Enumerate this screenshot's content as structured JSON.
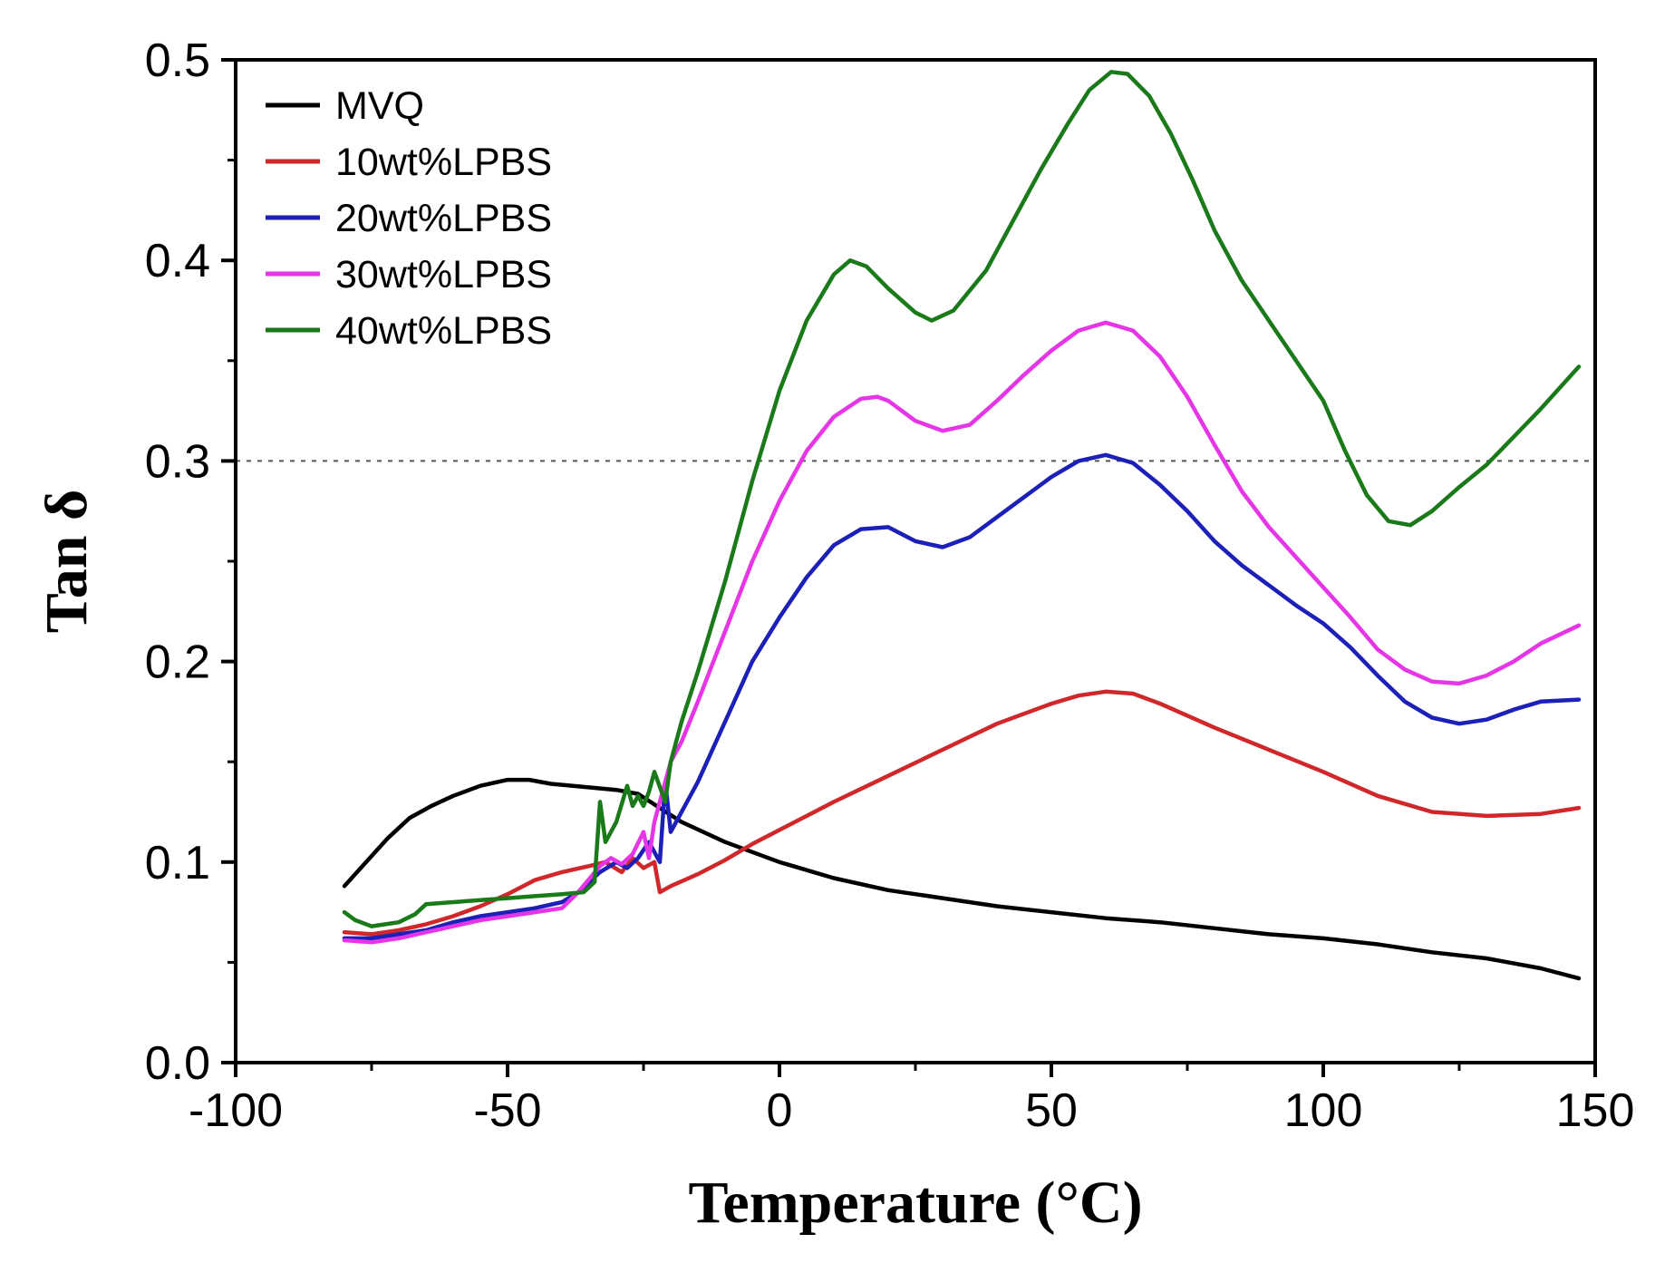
{
  "chart_data": {
    "type": "line",
    "title": "",
    "xlabel": "Temperature (°C)",
    "ylabel": "Tan δ",
    "xlim": [
      -100,
      150
    ],
    "ylim": [
      0.0,
      0.5
    ],
    "x_ticks": [
      -100,
      -50,
      0,
      50,
      100,
      150
    ],
    "x_tick_labels": [
      "-100",
      "-50",
      "0",
      "50",
      "100",
      "150"
    ],
    "y_ticks": [
      0.0,
      0.1,
      0.2,
      0.3,
      0.4,
      0.5
    ],
    "y_tick_labels": [
      "0.0",
      "0.1",
      "0.2",
      "0.3",
      "0.4",
      "0.5"
    ],
    "grid": false,
    "legend_position": "top-left",
    "reference_line": {
      "y": 0.3,
      "style": "dotted"
    },
    "series": [
      {
        "name": "MVQ",
        "color": "#000000",
        "points": [
          [
            -80,
            0.088
          ],
          [
            -76,
            0.1
          ],
          [
            -72,
            0.112
          ],
          [
            -68,
            0.122
          ],
          [
            -64,
            0.128
          ],
          [
            -60,
            0.133
          ],
          [
            -55,
            0.138
          ],
          [
            -50,
            0.141
          ],
          [
            -46,
            0.141
          ],
          [
            -42,
            0.139
          ],
          [
            -38,
            0.138
          ],
          [
            -34,
            0.137
          ],
          [
            -30,
            0.136
          ],
          [
            -26,
            0.134
          ],
          [
            -22,
            0.127
          ],
          [
            -18,
            0.12
          ],
          [
            -10,
            0.11
          ],
          [
            0,
            0.1
          ],
          [
            10,
            0.092
          ],
          [
            20,
            0.086
          ],
          [
            30,
            0.082
          ],
          [
            40,
            0.078
          ],
          [
            50,
            0.075
          ],
          [
            60,
            0.072
          ],
          [
            70,
            0.07
          ],
          [
            80,
            0.067
          ],
          [
            90,
            0.064
          ],
          [
            100,
            0.062
          ],
          [
            110,
            0.059
          ],
          [
            120,
            0.055
          ],
          [
            130,
            0.052
          ],
          [
            140,
            0.047
          ],
          [
            147,
            0.042
          ]
        ]
      },
      {
        "name": "10wt%LPBS",
        "color": "#d0282a",
        "points": [
          [
            -80,
            0.065
          ],
          [
            -75,
            0.064
          ],
          [
            -70,
            0.066
          ],
          [
            -65,
            0.069
          ],
          [
            -60,
            0.073
          ],
          [
            -55,
            0.078
          ],
          [
            -50,
            0.084
          ],
          [
            -45,
            0.091
          ],
          [
            -40,
            0.095
          ],
          [
            -35,
            0.098
          ],
          [
            -32,
            0.1
          ],
          [
            -29,
            0.095
          ],
          [
            -27,
            0.102
          ],
          [
            -25,
            0.097
          ],
          [
            -23,
            0.1
          ],
          [
            -22,
            0.085
          ],
          [
            -20,
            0.088
          ],
          [
            -15,
            0.094
          ],
          [
            -10,
            0.101
          ],
          [
            -5,
            0.109
          ],
          [
            0,
            0.116
          ],
          [
            10,
            0.13
          ],
          [
            20,
            0.143
          ],
          [
            30,
            0.156
          ],
          [
            40,
            0.169
          ],
          [
            50,
            0.179
          ],
          [
            55,
            0.183
          ],
          [
            60,
            0.185
          ],
          [
            65,
            0.184
          ],
          [
            70,
            0.179
          ],
          [
            80,
            0.167
          ],
          [
            90,
            0.156
          ],
          [
            100,
            0.145
          ],
          [
            110,
            0.133
          ],
          [
            120,
            0.125
          ],
          [
            130,
            0.123
          ],
          [
            140,
            0.124
          ],
          [
            147,
            0.127
          ]
        ]
      },
      {
        "name": "20wt%LPBS",
        "color": "#1c1fb8",
        "points": [
          [
            -80,
            0.062
          ],
          [
            -75,
            0.062
          ],
          [
            -70,
            0.064
          ],
          [
            -65,
            0.066
          ],
          [
            -60,
            0.07
          ],
          [
            -55,
            0.073
          ],
          [
            -50,
            0.075
          ],
          [
            -45,
            0.077
          ],
          [
            -40,
            0.08
          ],
          [
            -37,
            0.085
          ],
          [
            -33,
            0.095
          ],
          [
            -30,
            0.1
          ],
          [
            -28,
            0.097
          ],
          [
            -26,
            0.102
          ],
          [
            -24,
            0.11
          ],
          [
            -22,
            0.1
          ],
          [
            -21,
            0.14
          ],
          [
            -20,
            0.115
          ],
          [
            -18,
            0.125
          ],
          [
            -15,
            0.14
          ],
          [
            -10,
            0.17
          ],
          [
            -5,
            0.2
          ],
          [
            0,
            0.222
          ],
          [
            5,
            0.242
          ],
          [
            10,
            0.258
          ],
          [
            15,
            0.266
          ],
          [
            20,
            0.267
          ],
          [
            25,
            0.26
          ],
          [
            30,
            0.257
          ],
          [
            35,
            0.262
          ],
          [
            40,
            0.272
          ],
          [
            45,
            0.282
          ],
          [
            50,
            0.292
          ],
          [
            55,
            0.3
          ],
          [
            60,
            0.303
          ],
          [
            65,
            0.299
          ],
          [
            70,
            0.288
          ],
          [
            75,
            0.275
          ],
          [
            80,
            0.26
          ],
          [
            85,
            0.248
          ],
          [
            90,
            0.238
          ],
          [
            95,
            0.228
          ],
          [
            100,
            0.219
          ],
          [
            105,
            0.207
          ],
          [
            110,
            0.193
          ],
          [
            115,
            0.18
          ],
          [
            120,
            0.172
          ],
          [
            125,
            0.169
          ],
          [
            130,
            0.171
          ],
          [
            135,
            0.176
          ],
          [
            140,
            0.18
          ],
          [
            147,
            0.181
          ]
        ]
      },
      {
        "name": "30wt%LPBS",
        "color": "#e635e6",
        "points": [
          [
            -80,
            0.061
          ],
          [
            -75,
            0.06
          ],
          [
            -70,
            0.062
          ],
          [
            -65,
            0.065
          ],
          [
            -60,
            0.068
          ],
          [
            -55,
            0.071
          ],
          [
            -50,
            0.073
          ],
          [
            -45,
            0.075
          ],
          [
            -40,
            0.077
          ],
          [
            -37,
            0.085
          ],
          [
            -33,
            0.098
          ],
          [
            -31,
            0.102
          ],
          [
            -29,
            0.099
          ],
          [
            -27,
            0.104
          ],
          [
            -25,
            0.115
          ],
          [
            -24,
            0.102
          ],
          [
            -23,
            0.12
          ],
          [
            -22,
            0.13
          ],
          [
            -20,
            0.15
          ],
          [
            -18,
            0.16
          ],
          [
            -15,
            0.18
          ],
          [
            -10,
            0.215
          ],
          [
            -5,
            0.25
          ],
          [
            0,
            0.28
          ],
          [
            5,
            0.305
          ],
          [
            10,
            0.322
          ],
          [
            15,
            0.331
          ],
          [
            18,
            0.332
          ],
          [
            20,
            0.33
          ],
          [
            25,
            0.32
          ],
          [
            30,
            0.315
          ],
          [
            35,
            0.318
          ],
          [
            40,
            0.33
          ],
          [
            45,
            0.343
          ],
          [
            50,
            0.355
          ],
          [
            55,
            0.365
          ],
          [
            60,
            0.369
          ],
          [
            65,
            0.365
          ],
          [
            70,
            0.352
          ],
          [
            75,
            0.332
          ],
          [
            80,
            0.308
          ],
          [
            85,
            0.285
          ],
          [
            90,
            0.267
          ],
          [
            95,
            0.252
          ],
          [
            100,
            0.237
          ],
          [
            105,
            0.222
          ],
          [
            110,
            0.206
          ],
          [
            115,
            0.196
          ],
          [
            120,
            0.19
          ],
          [
            125,
            0.189
          ],
          [
            130,
            0.193
          ],
          [
            135,
            0.2
          ],
          [
            140,
            0.209
          ],
          [
            147,
            0.218
          ]
        ]
      },
      {
        "name": "40wt%LPBS",
        "color": "#1a7a1a",
        "points": [
          [
            -80,
            0.075
          ],
          [
            -78,
            0.071
          ],
          [
            -75,
            0.068
          ],
          [
            -70,
            0.07
          ],
          [
            -67,
            0.074
          ],
          [
            -65,
            0.079
          ],
          [
            -60,
            0.08
          ],
          [
            -55,
            0.081
          ],
          [
            -50,
            0.082
          ],
          [
            -45,
            0.083
          ],
          [
            -40,
            0.084
          ],
          [
            -36,
            0.085
          ],
          [
            -34,
            0.09
          ],
          [
            -33,
            0.13
          ],
          [
            -32,
            0.11
          ],
          [
            -30,
            0.12
          ],
          [
            -28,
            0.138
          ],
          [
            -27,
            0.128
          ],
          [
            -26,
            0.133
          ],
          [
            -25,
            0.128
          ],
          [
            -24,
            0.135
          ],
          [
            -23,
            0.145
          ],
          [
            -21,
            0.13
          ],
          [
            -20,
            0.15
          ],
          [
            -18,
            0.17
          ],
          [
            -15,
            0.195
          ],
          [
            -10,
            0.24
          ],
          [
            -5,
            0.29
          ],
          [
            0,
            0.335
          ],
          [
            5,
            0.37
          ],
          [
            10,
            0.393
          ],
          [
            13,
            0.4
          ],
          [
            16,
            0.397
          ],
          [
            20,
            0.386
          ],
          [
            25,
            0.374
          ],
          [
            28,
            0.37
          ],
          [
            32,
            0.375
          ],
          [
            38,
            0.395
          ],
          [
            43,
            0.42
          ],
          [
            48,
            0.445
          ],
          [
            53,
            0.468
          ],
          [
            57,
            0.485
          ],
          [
            61,
            0.494
          ],
          [
            64,
            0.493
          ],
          [
            68,
            0.482
          ],
          [
            72,
            0.463
          ],
          [
            76,
            0.44
          ],
          [
            80,
            0.415
          ],
          [
            85,
            0.39
          ],
          [
            90,
            0.37
          ],
          [
            95,
            0.35
          ],
          [
            100,
            0.33
          ],
          [
            104,
            0.305
          ],
          [
            108,
            0.283
          ],
          [
            112,
            0.27
          ],
          [
            116,
            0.268
          ],
          [
            120,
            0.275
          ],
          [
            125,
            0.287
          ],
          [
            130,
            0.298
          ],
          [
            135,
            0.312
          ],
          [
            140,
            0.326
          ],
          [
            147,
            0.347
          ]
        ]
      }
    ]
  }
}
